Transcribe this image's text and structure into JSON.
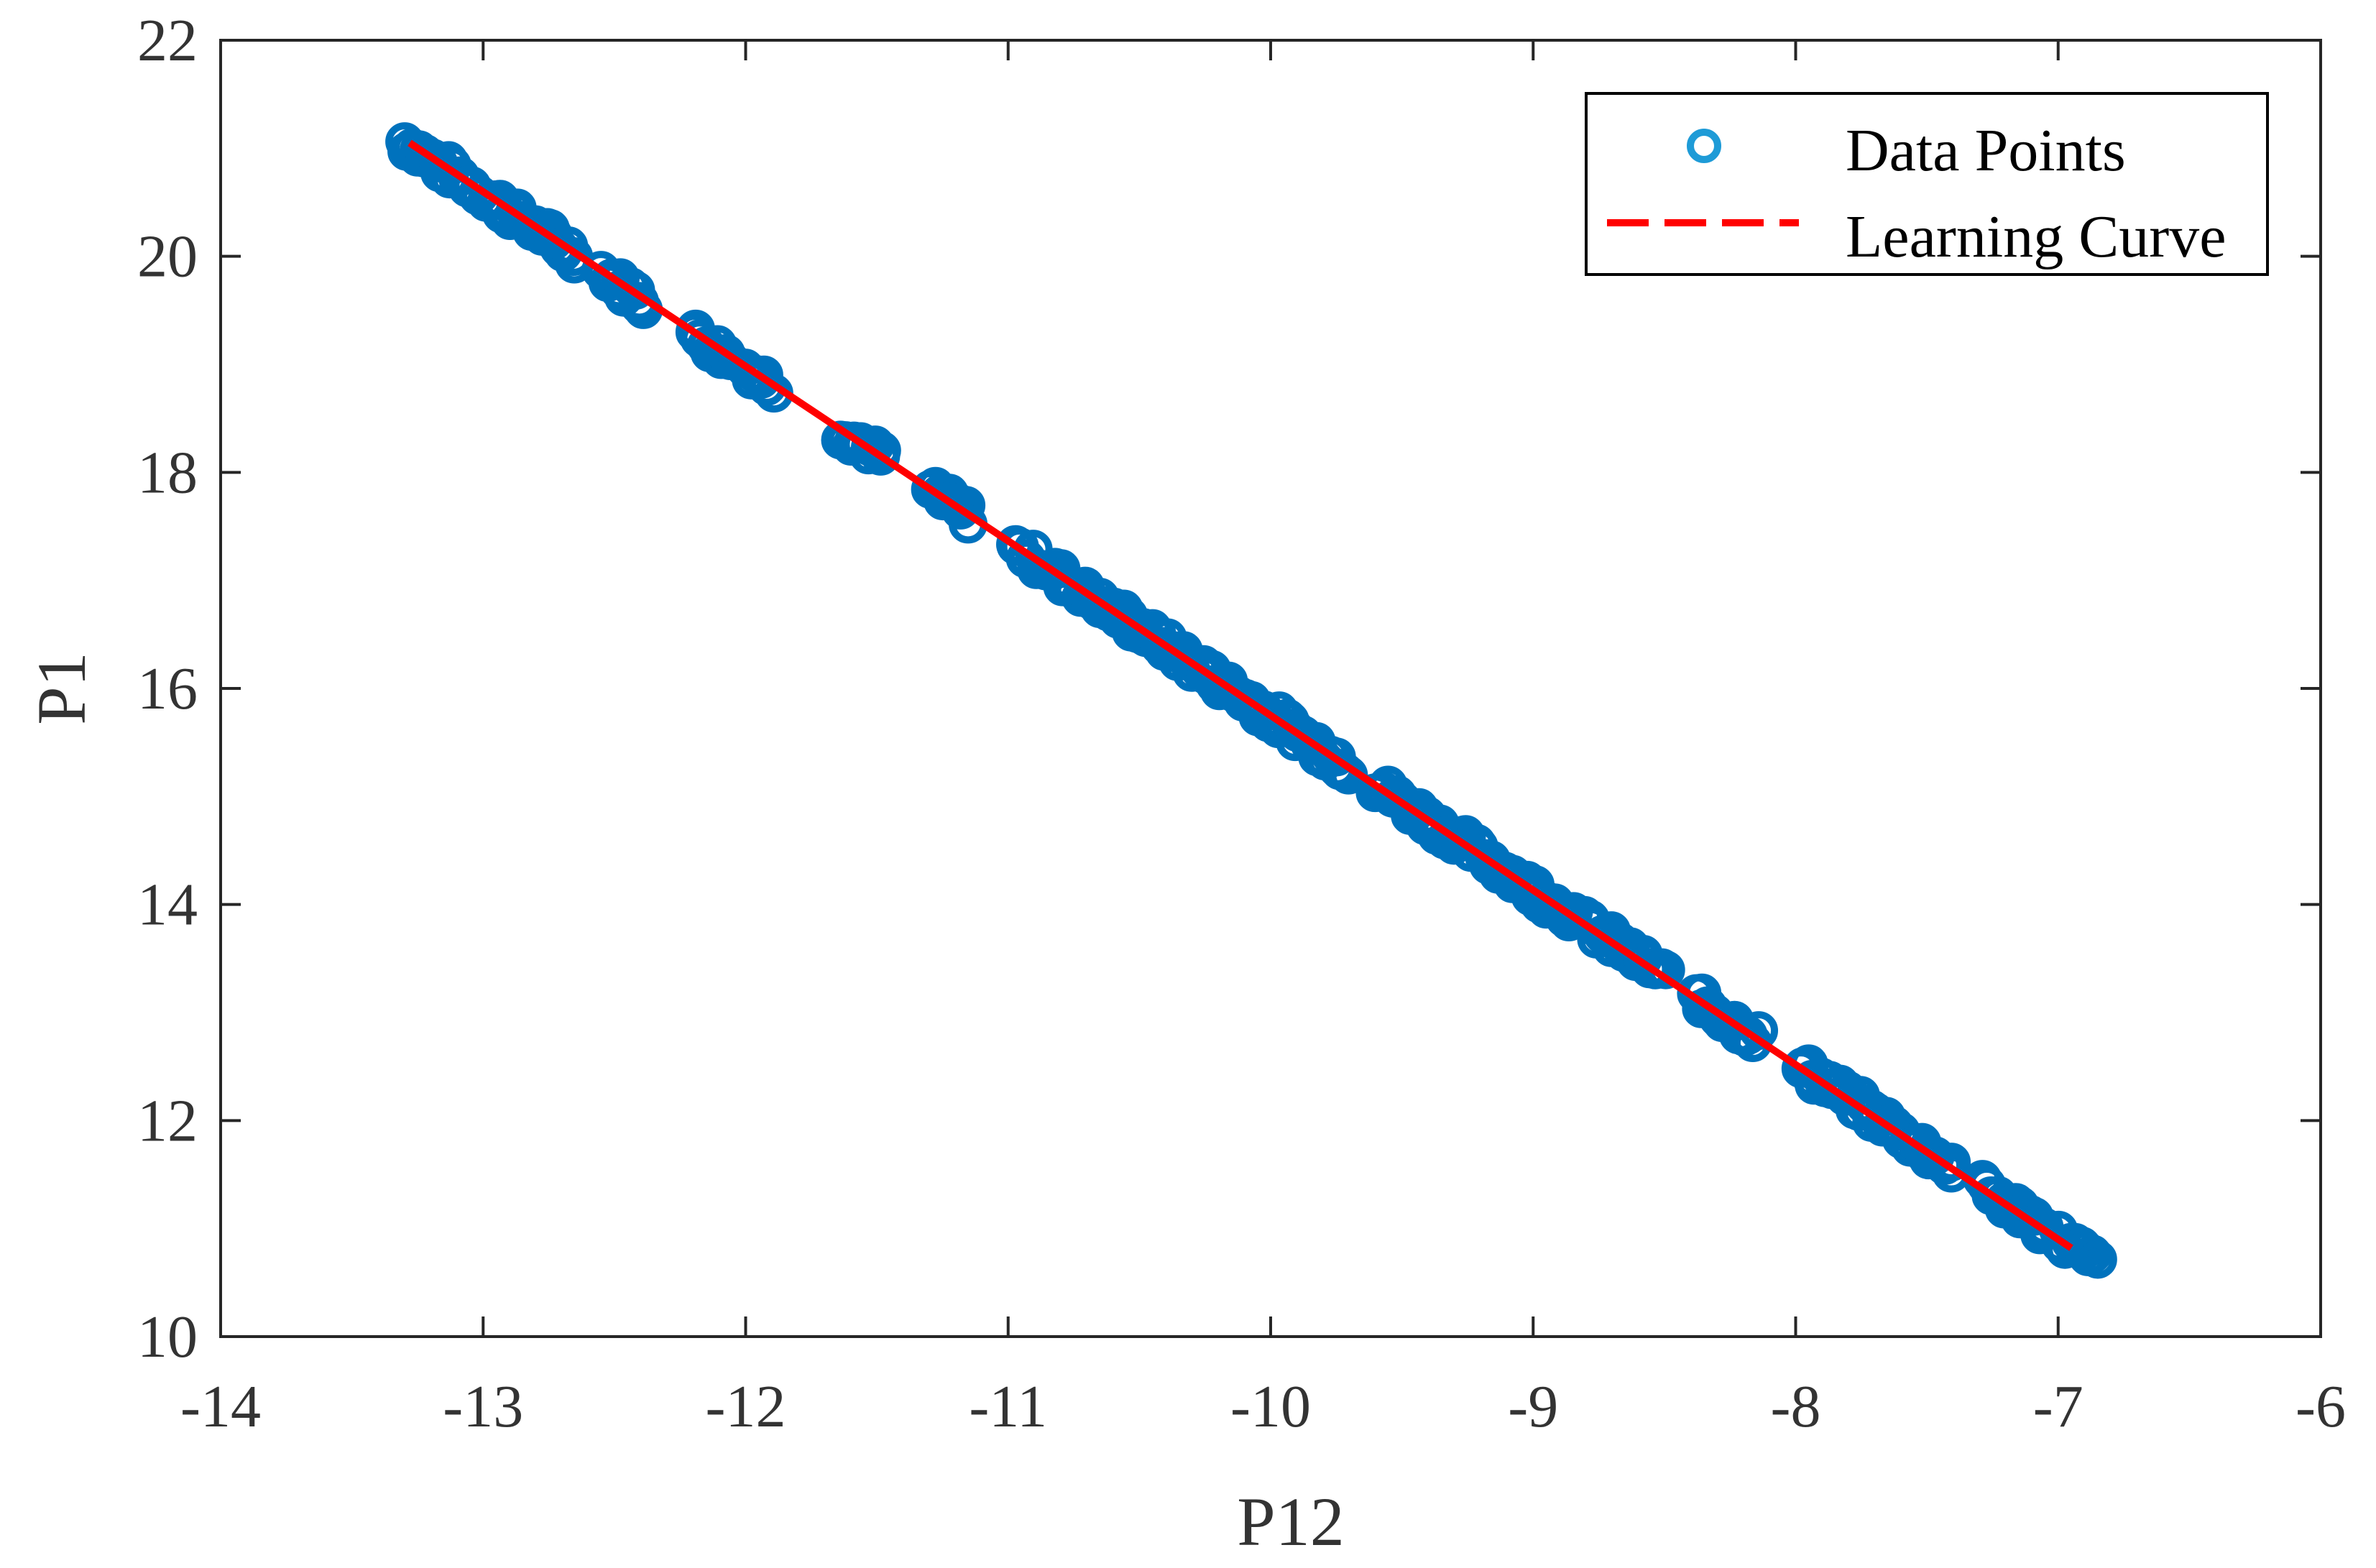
{
  "chart_data": {
    "type": "scatter",
    "title": "",
    "xlabel": "P12",
    "ylabel": "P1",
    "xlim": [
      -14,
      -6
    ],
    "ylim": [
      10,
      22
    ],
    "xticks": [
      -14,
      -13,
      -12,
      -11,
      -10,
      -9,
      -8,
      -7,
      -6
    ],
    "yticks": [
      10,
      12,
      14,
      16,
      18,
      20,
      22
    ],
    "xtick_labels": [
      "-14",
      "-13",
      "-12",
      "-11",
      "-10",
      "-9",
      "-8",
      "-7",
      "-6"
    ],
    "ytick_labels": [
      "10",
      "12",
      "14",
      "16",
      "18",
      "20",
      "22"
    ],
    "grid": false,
    "legend_position": "top-right",
    "series": [
      {
        "name": "Data Points",
        "kind": "scatter-circle",
        "color": "#0072BD",
        "legend_color": "#1E9BD7",
        "clusters": [
          {
            "x_start": -13.3,
            "x_end": -12.65
          },
          {
            "x_start": -12.55,
            "x_end": -12.38
          },
          {
            "x_start": -12.2,
            "x_end": -12.05
          },
          {
            "x_start": -12.0,
            "x_end": -11.9
          },
          {
            "x_start": -11.63,
            "x_end": -11.48
          },
          {
            "x_start": -11.3,
            "x_end": -11.15
          },
          {
            "x_start": -10.98,
            "x_end": -10.8
          },
          {
            "x_start": -10.8,
            "x_end": -9.7
          },
          {
            "x_start": -9.6,
            "x_end": -9.0
          },
          {
            "x_start": -9.0,
            "x_end": -8.85
          },
          {
            "x_start": -8.8,
            "x_end": -8.5
          },
          {
            "x_start": -8.38,
            "x_end": -8.15
          },
          {
            "x_start": -7.98,
            "x_end": -7.4
          },
          {
            "x_start": -7.28,
            "x_end": -7.15
          },
          {
            "x_start": -7.15,
            "x_end": -7.05
          },
          {
            "x_start": -7.0,
            "x_end": -6.85
          }
        ],
        "fit": {
          "slope": -1.61,
          "intercept": -0.35
        }
      },
      {
        "name": "Learning Curve",
        "kind": "line",
        "color": "#FF0000",
        "x": [
          -13.28,
          -6.95
        ],
        "y": [
          21.05,
          10.82
        ]
      }
    ]
  }
}
